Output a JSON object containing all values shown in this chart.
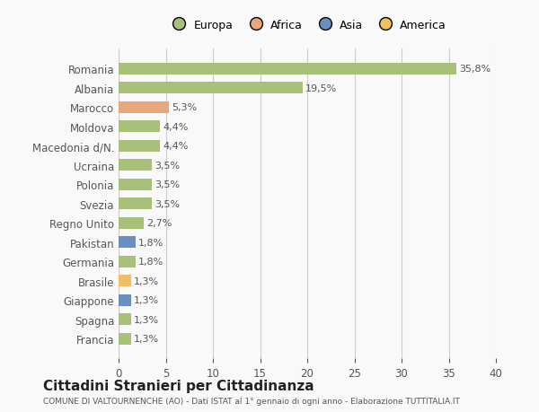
{
  "categories": [
    "Romania",
    "Albania",
    "Marocco",
    "Moldova",
    "Macedonia d/N.",
    "Ucraina",
    "Polonia",
    "Svezia",
    "Regno Unito",
    "Pakistan",
    "Germania",
    "Brasile",
    "Giappone",
    "Spagna",
    "Francia"
  ],
  "values": [
    35.8,
    19.5,
    5.3,
    4.4,
    4.4,
    3.5,
    3.5,
    3.5,
    2.7,
    1.8,
    1.8,
    1.3,
    1.3,
    1.3,
    1.3
  ],
  "labels": [
    "35,8%",
    "19,5%",
    "5,3%",
    "4,4%",
    "4,4%",
    "3,5%",
    "3,5%",
    "3,5%",
    "2,7%",
    "1,8%",
    "1,8%",
    "1,3%",
    "1,3%",
    "1,3%",
    "1,3%"
  ],
  "continent": [
    "Europa",
    "Europa",
    "Africa",
    "Europa",
    "Europa",
    "Europa",
    "Europa",
    "Europa",
    "Europa",
    "Asia",
    "Europa",
    "America",
    "Asia",
    "Europa",
    "Europa"
  ],
  "colors": {
    "Europa": "#a8c07a",
    "Africa": "#e8a87c",
    "Asia": "#6b8ec2",
    "America": "#f0c060"
  },
  "legend_order": [
    "Europa",
    "Africa",
    "Asia",
    "America"
  ],
  "legend_colors": {
    "Europa": "#a8c07a",
    "Africa": "#e8a87c",
    "Asia": "#6b8ec2",
    "America": "#f0c060"
  },
  "xlim": [
    0,
    40
  ],
  "xticks": [
    0,
    5,
    10,
    15,
    20,
    25,
    30,
    35,
    40
  ],
  "title": "Cittadini Stranieri per Cittadinanza",
  "subtitle": "COMUNE DI VALTOURNENCHE (AO) - Dati ISTAT al 1° gennaio di ogni anno - Elaborazione TUTTITALIA.IT",
  "background_color": "#f9f9f9",
  "grid_color": "#cccccc",
  "bar_height": 0.6
}
